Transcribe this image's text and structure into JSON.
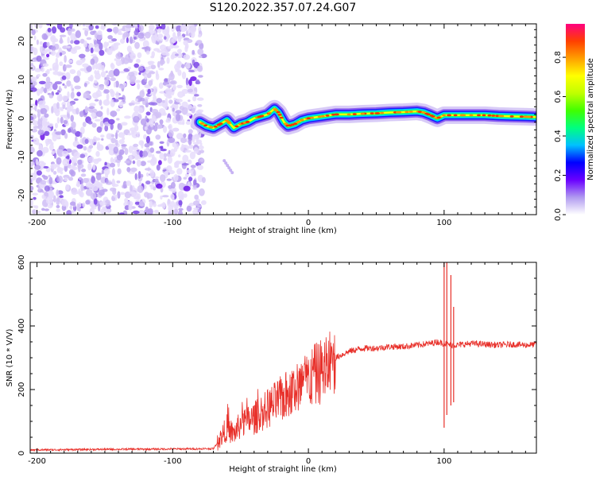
{
  "title": "S120.2022.357.07.24.G07",
  "chart_data": [
    {
      "type": "heatmap",
      "xlabel": "Height of straight line (km)",
      "ylabel": "Frequency (Hz)",
      "xlim": [
        -205,
        168
      ],
      "ylim": [
        -25,
        24.5
      ],
      "xticks": [
        -200,
        -100,
        0,
        100
      ],
      "yticks": [
        -20,
        -10,
        0,
        10,
        20
      ],
      "colorbar": {
        "label": "Normalized spectral amplitude",
        "range": [
          0,
          0.97
        ],
        "ticks": [
          "0.0",
          "0.2",
          "0.4",
          "0.6",
          "0.8"
        ],
        "colors": [
          "#ffffff",
          "#b09af0",
          "#6a00ff",
          "#0000ff",
          "#00c0ff",
          "#00ff80",
          "#40ff00",
          "#c0ff00",
          "#ffff00",
          "#ffa000",
          "#ff4000",
          "#ff0080"
        ]
      },
      "ridge": {
        "x": [
          -80,
          -75,
          -70,
          -65,
          -60,
          -55,
          -50,
          -45,
          -40,
          -35,
          -30,
          -25,
          -22,
          -18,
          -15,
          -10,
          -5,
          0,
          10,
          20,
          30,
          40,
          50,
          60,
          70,
          80,
          85,
          90,
          95,
          100,
          110,
          120,
          130,
          140,
          150,
          160,
          168
        ],
        "y": [
          -1,
          -2,
          -2.5,
          -1.5,
          -0.5,
          -2.5,
          -1.5,
          -1,
          0,
          0.5,
          1,
          2.5,
          1.5,
          -1,
          -2,
          -1.5,
          -0.5,
          0,
          0.5,
          1,
          1,
          1.2,
          1.3,
          1.5,
          1.6,
          1.8,
          1.5,
          0.8,
          0,
          0.8,
          0.8,
          0.8,
          0.8,
          0.6,
          0.5,
          0.4,
          0.3
        ]
      },
      "noise_region_x": [
        -205,
        -77
      ]
    },
    {
      "type": "line",
      "xlabel": "Height of straight line (km)",
      "ylabel": "SNR (10 * V/V)",
      "xlim": [
        -205,
        168
      ],
      "ylim": [
        0,
        600
      ],
      "xticks": [
        -200,
        -100,
        0,
        100
      ],
      "yticks": [
        0,
        200,
        400,
        600
      ],
      "color": "#e8302a",
      "series": [
        {
          "x": [
            -205,
            -150,
            -100,
            -70,
            -65,
            -60,
            -55,
            -50,
            -45,
            -40,
            -30,
            -20,
            -10,
            0,
            10,
            20,
            30,
            40,
            50,
            60,
            70,
            80,
            90,
            95,
            100,
            105,
            110,
            120,
            130,
            140,
            150,
            160,
            168
          ],
          "y": [
            10,
            12,
            13,
            14,
            45,
            80,
            60,
            90,
            100,
            110,
            140,
            170,
            200,
            230,
            260,
            300,
            320,
            330,
            330,
            335,
            335,
            340,
            345,
            350,
            345,
            340,
            340,
            345,
            342,
            340,
            342,
            340,
            342
          ]
        }
      ],
      "spikes": [
        {
          "x": 100,
          "y_low": 80,
          "y_high": 600
        },
        {
          "x": 102,
          "y_low": 120,
          "y_high": 600
        },
        {
          "x": 105,
          "y_low": 150,
          "y_high": 560
        },
        {
          "x": 107,
          "y_low": 160,
          "y_high": 460
        }
      ]
    }
  ]
}
